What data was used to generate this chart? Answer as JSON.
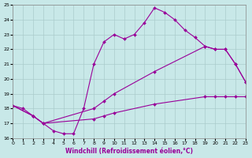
{
  "xlabel": "Windchill (Refroidissement éolien,°C)",
  "bg_color": "#c8e8e8",
  "grid_color": "#aacccc",
  "line_color": "#990099",
  "xlim": [
    0,
    23
  ],
  "ylim": [
    16,
    25
  ],
  "xticks": [
    0,
    1,
    2,
    3,
    4,
    5,
    6,
    7,
    8,
    9,
    10,
    11,
    12,
    13,
    14,
    15,
    16,
    17,
    18,
    19,
    20,
    21,
    22,
    23
  ],
  "yticks": [
    16,
    17,
    18,
    19,
    20,
    21,
    22,
    23,
    24,
    25
  ],
  "line1_x": [
    0,
    1,
    2,
    3,
    4,
    5,
    6,
    7,
    8,
    9,
    10,
    11,
    12,
    13,
    14,
    15,
    16,
    17,
    18,
    19,
    20,
    21,
    22,
    23
  ],
  "line1_y": [
    18.2,
    18.0,
    17.5,
    17.0,
    16.5,
    16.3,
    16.3,
    18.0,
    21.0,
    22.5,
    23.0,
    22.7,
    23.0,
    23.8,
    24.8,
    24.5,
    24.0,
    23.3,
    22.8,
    22.2,
    22.0,
    22.0,
    21.0,
    19.8
  ],
  "line2_x": [
    0,
    2,
    3,
    8,
    9,
    10,
    14,
    19,
    20,
    21,
    22,
    23
  ],
  "line2_y": [
    18.2,
    17.5,
    17.0,
    18.0,
    18.5,
    19.0,
    20.5,
    22.2,
    22.0,
    22.0,
    21.0,
    19.8
  ],
  "line3_x": [
    0,
    2,
    3,
    8,
    9,
    10,
    14,
    19,
    20,
    21,
    22,
    23
  ],
  "line3_y": [
    18.2,
    17.5,
    17.0,
    17.3,
    17.5,
    17.7,
    18.3,
    18.8,
    18.8,
    18.8,
    18.8,
    18.8
  ]
}
